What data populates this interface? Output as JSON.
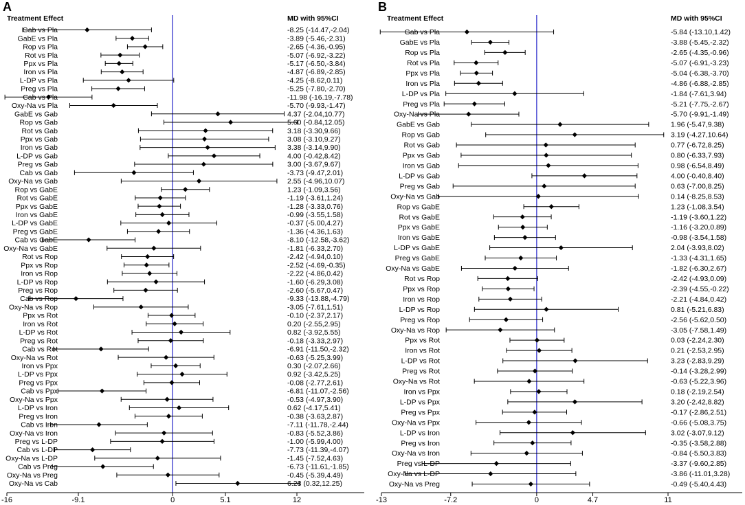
{
  "chart_data": [
    {
      "type": "forest",
      "panel_label": "A",
      "left_header": "Treatment Effect",
      "right_header": "MD with 95%CI",
      "xlim": [
        -16,
        12
      ],
      "xticks": [
        -16,
        -9.1,
        0,
        5.1,
        12
      ],
      "xtick_labels": [
        "-16",
        "-9.1",
        "0",
        "5.1",
        "12"
      ],
      "reference_line": 0,
      "rows": [
        {
          "label": "Gab vs Pla",
          "md": -8.25,
          "lo": -14.47,
          "hi": -2.04,
          "text": "-8.25 (-14.47,-2.04)"
        },
        {
          "label": "GabE vs Pla",
          "md": -3.89,
          "lo": -5.46,
          "hi": -2.31,
          "text": "-3.89 (-5.46,-2.31)"
        },
        {
          "label": "Rop vs Pla",
          "md": -2.65,
          "lo": -4.36,
          "hi": -0.95,
          "text": "-2.65 (-4.36,-0.95)"
        },
        {
          "label": "Rot vs Pla",
          "md": -5.07,
          "lo": -6.92,
          "hi": -3.22,
          "text": "-5.07 (-6.92,-3.22)"
        },
        {
          "label": "Ppx vs Pla",
          "md": -5.17,
          "lo": -6.5,
          "hi": -3.84,
          "text": "-5.17 (-6.50,-3.84)"
        },
        {
          "label": "Iron vs Pla",
          "md": -4.87,
          "lo": -6.89,
          "hi": -2.85,
          "text": "-4.87 (-6.89,-2.85)"
        },
        {
          "label": "L-DP vs Pla",
          "md": -4.25,
          "lo": -8.62,
          "hi": 0.11,
          "text": "-4.25 (-8.62,0.11)"
        },
        {
          "label": "Preg vs Pla",
          "md": -5.25,
          "lo": -7.8,
          "hi": -2.7,
          "text": "-5.25 (-7.80,-2.70)"
        },
        {
          "label": "Cab vs Pla",
          "md": -11.98,
          "lo": -16.19,
          "hi": -7.78,
          "text": "-11.98 (-16.19,-7.78)"
        },
        {
          "label": "Oxy-Na vs Pla",
          "md": -5.7,
          "lo": -9.93,
          "hi": -1.47,
          "text": "-5.70 (-9.93,-1.47)"
        },
        {
          "label": "GabE vs Gab",
          "md": 4.37,
          "lo": -2.04,
          "hi": 10.77,
          "text": "4.37 (-2.04,10.77)"
        },
        {
          "label": "Rop vs Gab",
          "md": 5.6,
          "lo": -0.84,
          "hi": 12.05,
          "text": "5.60 (-0.84,12.05)"
        },
        {
          "label": "Rot vs Gab",
          "md": 3.18,
          "lo": -3.3,
          "hi": 9.66,
          "text": "3.18 (-3.30,9.66)"
        },
        {
          "label": "Ppx vs Gab",
          "md": 3.08,
          "lo": -3.1,
          "hi": 9.27,
          "text": "3.08 (-3.10,9.27)"
        },
        {
          "label": "Iron vs Gab",
          "md": 3.38,
          "lo": -3.14,
          "hi": 9.9,
          "text": "3.38 (-3.14,9.90)"
        },
        {
          "label": "L-DP vs Gab",
          "md": 4.0,
          "lo": -0.42,
          "hi": 8.42,
          "text": "4.00 (-0.42,8.42)"
        },
        {
          "label": "Preg vs Gab",
          "md": 3.0,
          "lo": -3.67,
          "hi": 9.67,
          "text": "3.00 (-3.67,9.67)"
        },
        {
          "label": "Cab vs Gab",
          "md": -3.73,
          "lo": -9.47,
          "hi": 2.01,
          "text": "-3.73 (-9.47,2.01)"
        },
        {
          "label": "Oxy-Na vs Gab",
          "md": 2.55,
          "lo": -4.96,
          "hi": 10.07,
          "text": "2.55 (-4.96,10.07)"
        },
        {
          "label": "Rop vs GabE",
          "md": 1.23,
          "lo": -1.09,
          "hi": 3.56,
          "text": "1.23 (-1.09,3.56)"
        },
        {
          "label": "Rot vs GabE",
          "md": -1.19,
          "lo": -3.61,
          "hi": 1.24,
          "text": "-1.19 (-3.61,1.24)"
        },
        {
          "label": "Ppx vs GabE",
          "md": -1.28,
          "lo": -3.33,
          "hi": 0.76,
          "text": "-1.28 (-3.33,0.76)"
        },
        {
          "label": "Iron vs GabE",
          "md": -0.99,
          "lo": -3.55,
          "hi": 1.58,
          "text": "-0.99 (-3.55,1.58)"
        },
        {
          "label": "L-DP vs GabE",
          "md": -0.37,
          "lo": -5.0,
          "hi": 4.27,
          "text": "-0.37 (-5.00,4.27)"
        },
        {
          "label": "Preg vs GabE",
          "md": -1.36,
          "lo": -4.36,
          "hi": 1.63,
          "text": "-1.36 (-4.36,1.63)"
        },
        {
          "label": "Cab vs GabE",
          "md": -8.1,
          "lo": -12.58,
          "hi": -3.62,
          "text": "-8.10 (-12.58,-3.62)"
        },
        {
          "label": "Oxy-Na vs GabE",
          "md": -1.81,
          "lo": -6.33,
          "hi": 2.7,
          "text": "-1.81 (-6.33,2.70)"
        },
        {
          "label": "Rot vs Rop",
          "md": -2.42,
          "lo": -4.94,
          "hi": 0.1,
          "text": "-2.42 (-4.94,0.10)"
        },
        {
          "label": "Ppx vs Rop",
          "md": -2.52,
          "lo": -4.69,
          "hi": -0.35,
          "text": "-2.52 (-4.69,-0.35)"
        },
        {
          "label": "Iron vs Rop",
          "md": -2.22,
          "lo": -4.86,
          "hi": 0.42,
          "text": "-2.22 (-4.86,0.42)"
        },
        {
          "label": "L-DP vs Rop",
          "md": -1.6,
          "lo": -6.29,
          "hi": 3.08,
          "text": "-1.60 (-6.29,3.08)"
        },
        {
          "label": "Preg vs Rop",
          "md": -2.6,
          "lo": -5.67,
          "hi": 0.47,
          "text": "-2.60 (-5.67,0.47)"
        },
        {
          "label": "Cab vs Rop",
          "md": -9.33,
          "lo": -13.88,
          "hi": -4.79,
          "text": "-9.33 (-13.88,-4.79)"
        },
        {
          "label": "Oxy-Na vs Rop",
          "md": -3.05,
          "lo": -7.61,
          "hi": 1.51,
          "text": "-3.05 (-7.61,1.51)"
        },
        {
          "label": "Ppx vs Rot",
          "md": -0.1,
          "lo": -2.37,
          "hi": 2.17,
          "text": "-0.10 (-2.37,2.17)"
        },
        {
          "label": "Iron vs Rot",
          "md": 0.2,
          "lo": -2.55,
          "hi": 2.95,
          "text": "0.20 (-2.55,2.95)"
        },
        {
          "label": "L-DP vs Rot",
          "md": 0.82,
          "lo": -3.92,
          "hi": 5.55,
          "text": "0.82 (-3.92,5.55)"
        },
        {
          "label": "Preg vs Rot",
          "md": -0.18,
          "lo": -3.33,
          "hi": 2.97,
          "text": "-0.18 (-3.33,2.97)"
        },
        {
          "label": "Cab vs Rot",
          "md": -6.91,
          "lo": -11.5,
          "hi": -2.32,
          "text": "-6.91 (-11.50,-2.32)"
        },
        {
          "label": "Oxy-Na vs Rot",
          "md": -0.63,
          "lo": -5.25,
          "hi": 3.99,
          "text": "-0.63 (-5.25,3.99)"
        },
        {
          "label": "Iron vs Ppx",
          "md": 0.3,
          "lo": -2.07,
          "hi": 2.66,
          "text": "0.30 (-2.07,2.66)"
        },
        {
          "label": "L-DP vs Ppx",
          "md": 0.92,
          "lo": -3.42,
          "hi": 5.25,
          "text": "0.92 (-3.42,5.25)"
        },
        {
          "label": "Preg vs Ppx",
          "md": -0.08,
          "lo": -2.77,
          "hi": 2.61,
          "text": "-0.08 (-2.77,2.61)"
        },
        {
          "label": "Cab vs Ppx",
          "md": -6.81,
          "lo": -11.07,
          "hi": -2.56,
          "text": "-6.81 (-11.07,-2.56)"
        },
        {
          "label": "Oxy-Na vs Ppx",
          "md": -0.53,
          "lo": -4.97,
          "hi": 3.9,
          "text": "-0.53 (-4.97,3.90)"
        },
        {
          "label": "L-DP vs Iron",
          "md": 0.62,
          "lo": -4.17,
          "hi": 5.41,
          "text": "0.62 (-4.17,5.41)"
        },
        {
          "label": "Preg vs Iron",
          "md": -0.38,
          "lo": -3.63,
          "hi": 2.87,
          "text": "-0.38 (-3.63,2.87)"
        },
        {
          "label": "Cab vs Iron",
          "md": -7.11,
          "lo": -11.78,
          "hi": -2.44,
          "text": "-7.11 (-11.78,-2.44)"
        },
        {
          "label": "Oxy-Na vs Iron",
          "md": -0.83,
          "lo": -5.52,
          "hi": 3.86,
          "text": "-0.83 (-5.52,3.86)"
        },
        {
          "label": "Preg vs L-DP",
          "md": -1.0,
          "lo": -5.99,
          "hi": 4.0,
          "text": "-1.00 (-5.99,4.00)"
        },
        {
          "label": "Cab vs L-DP",
          "md": -7.73,
          "lo": -11.39,
          "hi": -4.07,
          "text": "-7.73 (-11.39,-4.07)"
        },
        {
          "label": "Oxy-Na vs L-DP",
          "md": -1.45,
          "lo": -7.52,
          "hi": 4.63,
          "text": "-1.45 (-7.52,4.63)"
        },
        {
          "label": "Cab vs Preg",
          "md": -6.73,
          "lo": -11.61,
          "hi": -1.85,
          "text": "-6.73 (-11.61,-1.85)"
        },
        {
          "label": "Oxy-Na vs Preg",
          "md": -0.45,
          "lo": -5.39,
          "hi": 4.49,
          "text": "-0.45 (-5.39,4.49)"
        },
        {
          "label": "Oxy-Na vs Cab",
          "md": 6.28,
          "lo": 0.32,
          "hi": 12.25,
          "text": "6.28 (0.32,12.25)"
        }
      ]
    },
    {
      "type": "forest",
      "panel_label": "B",
      "left_header": "Treatment Effect",
      "right_header": "MD with 95%CI",
      "xlim": [
        -13,
        11
      ],
      "xticks": [
        -13,
        -7.2,
        0,
        4.7,
        11
      ],
      "xtick_labels": [
        "-13",
        "-7.2",
        "0",
        "4.7",
        "11"
      ],
      "reference_line": 0,
      "rows": [
        {
          "label": "Gab vs Pla",
          "md": -5.84,
          "lo": -13.1,
          "hi": 1.42,
          "text": "-5.84 (-13.10,1.42)"
        },
        {
          "label": "GabE vs Pla",
          "md": -3.88,
          "lo": -5.45,
          "hi": -2.32,
          "text": "-3.88 (-5.45,-2.32)"
        },
        {
          "label": "Rop vs Pla",
          "md": -2.65,
          "lo": -4.35,
          "hi": -0.96,
          "text": "-2.65 (-4.35,-0.96)"
        },
        {
          "label": "Rot vs Pla",
          "md": -5.07,
          "lo": -6.91,
          "hi": -3.23,
          "text": "-5.07 (-6.91,-3.23)"
        },
        {
          "label": "Ppx vs Pla",
          "md": -5.04,
          "lo": -6.38,
          "hi": -3.7,
          "text": "-5.04 (-6.38,-3.70)"
        },
        {
          "label": "Iron vs Pla",
          "md": -4.86,
          "lo": -6.88,
          "hi": -2.85,
          "text": "-4.86 (-6.88,-2.85)"
        },
        {
          "label": "L-DP vs Pla",
          "md": -1.84,
          "lo": -7.61,
          "hi": 3.94,
          "text": "-1.84 (-7.61,3.94)"
        },
        {
          "label": "Preg vs Pla",
          "md": -5.21,
          "lo": -7.75,
          "hi": -2.67,
          "text": "-5.21 (-7.75,-2.67)"
        },
        {
          "label": "Oxy-Na vs Pla",
          "md": -5.7,
          "lo": -9.91,
          "hi": -1.49,
          "text": "-5.70 (-9.91,-1.49)"
        },
        {
          "label": "GabE vs Gab",
          "md": 1.96,
          "lo": -5.47,
          "hi": 9.38,
          "text": "1.96 (-5.47,9.38)"
        },
        {
          "label": "Rop vs Gab",
          "md": 3.19,
          "lo": -4.27,
          "hi": 10.64,
          "text": "3.19 (-4.27,10.64)"
        },
        {
          "label": "Rot vs Gab",
          "md": 0.77,
          "lo": -6.72,
          "hi": 8.25,
          "text": "0.77 (-6.72,8.25)"
        },
        {
          "label": "Ppx vs Gab",
          "md": 0.8,
          "lo": -6.33,
          "hi": 7.93,
          "text": "0.80 (-6.33,7.93)"
        },
        {
          "label": "Iron vs Gab",
          "md": 0.98,
          "lo": -6.54,
          "hi": 8.49,
          "text": "0.98 (-6.54,8.49)"
        },
        {
          "label": "L-DP vs Gab",
          "md": 4.0,
          "lo": -0.4,
          "hi": 8.4,
          "text": "4.00 (-0.40,8.40)"
        },
        {
          "label": "Preg vs Gab",
          "md": 0.63,
          "lo": -7.0,
          "hi": 8.25,
          "text": "0.63 (-7.00,8.25)"
        },
        {
          "label": "Oxy-Na vs Gab",
          "md": 0.14,
          "lo": -8.25,
          "hi": 8.53,
          "text": "0.14 (-8.25,8.53)"
        },
        {
          "label": "Rop vs GabE",
          "md": 1.23,
          "lo": -1.08,
          "hi": 3.54,
          "text": "1.23 (-1.08,3.54)"
        },
        {
          "label": "Rot vs GabE",
          "md": -1.19,
          "lo": -3.6,
          "hi": 1.22,
          "text": "-1.19 (-3.60,1.22)"
        },
        {
          "label": "Ppx vs GabE",
          "md": -1.16,
          "lo": -3.2,
          "hi": 0.89,
          "text": "-1.16 (-3.20,0.89)"
        },
        {
          "label": "Iron vs GabE",
          "md": -0.98,
          "lo": -3.54,
          "hi": 1.58,
          "text": "-0.98 (-3.54,1.58)"
        },
        {
          "label": "L-DP vs GabE",
          "md": 2.04,
          "lo": -3.93,
          "hi": 8.02,
          "text": "2.04 (-3.93,8.02)"
        },
        {
          "label": "Preg vs GabE",
          "md": -1.33,
          "lo": -4.31,
          "hi": 1.65,
          "text": "-1.33 (-4.31,1.65)"
        },
        {
          "label": "Oxy-Na vs GabE",
          "md": -1.82,
          "lo": -6.3,
          "hi": 2.67,
          "text": "-1.82 (-6.30,2.67)"
        },
        {
          "label": "Rot vs Rop",
          "md": -2.42,
          "lo": -4.93,
          "hi": 0.09,
          "text": "-2.42 (-4.93,0.09)"
        },
        {
          "label": "Ppx vs Rop",
          "md": -2.39,
          "lo": -4.55,
          "hi": -0.22,
          "text": "-2.39 (-4.55,-0.22)"
        },
        {
          "label": "Iron vs Rop",
          "md": -2.21,
          "lo": -4.84,
          "hi": 0.42,
          "text": "-2.21 (-4.84,0.42)"
        },
        {
          "label": "L-DP vs Rop",
          "md": 0.81,
          "lo": -5.21,
          "hi": 6.83,
          "text": "0.81 (-5.21,6.83)"
        },
        {
          "label": "Preg vs Rop",
          "md": -2.56,
          "lo": -5.62,
          "hi": 0.5,
          "text": "-2.56 (-5.62,0.50)"
        },
        {
          "label": "Oxy-Na vs Rop",
          "md": -3.05,
          "lo": -7.58,
          "hi": 1.49,
          "text": "-3.05 (-7.58,1.49)"
        },
        {
          "label": "Ppx vs Rot",
          "md": 0.03,
          "lo": -2.24,
          "hi": 2.3,
          "text": "0.03 (-2.24,2.30)"
        },
        {
          "label": "Iron vs Rot",
          "md": 0.21,
          "lo": -2.53,
          "hi": 2.95,
          "text": "0.21 (-2.53,2.95)"
        },
        {
          "label": "L-DP vs Rot",
          "md": 3.23,
          "lo": -2.83,
          "hi": 9.29,
          "text": "3.23 (-2.83,9.29)"
        },
        {
          "label": "Preg vs Rot",
          "md": -0.14,
          "lo": -3.28,
          "hi": 2.99,
          "text": "-0.14 (-3.28,2.99)"
        },
        {
          "label": "Oxy-Na vs Rot",
          "md": -0.63,
          "lo": -5.22,
          "hi": 3.96,
          "text": "-0.63 (-5.22,3.96)"
        },
        {
          "label": "Iron vs Ppx",
          "md": 0.18,
          "lo": -2.19,
          "hi": 2.54,
          "text": "0.18 (-2.19,2.54)"
        },
        {
          "label": "L-DP vs Ppx",
          "md": 3.2,
          "lo": -2.42,
          "hi": 8.82,
          "text": "3.20 (-2.42,8.82)"
        },
        {
          "label": "Preg vs Ppx",
          "md": -0.17,
          "lo": -2.86,
          "hi": 2.51,
          "text": "-0.17 (-2.86,2.51)"
        },
        {
          "label": "Oxy-Na vs Ppx",
          "md": -0.66,
          "lo": -5.08,
          "hi": 3.75,
          "text": "-0.66 (-5.08,3.75)"
        },
        {
          "label": "L-DP vs Iron",
          "md": 3.02,
          "lo": -3.07,
          "hi": 9.12,
          "text": "3.02 (-3.07,9.12)"
        },
        {
          "label": "Preg vs Iron",
          "md": -0.35,
          "lo": -3.58,
          "hi": 2.88,
          "text": "-0.35 (-3.58,2.88)"
        },
        {
          "label": "Oxy-Na vs Iron",
          "md": -0.84,
          "lo": -5.5,
          "hi": 3.83,
          "text": "-0.84 (-5.50,3.83)"
        },
        {
          "label": "Preg vs L-DP",
          "md": -3.37,
          "lo": -9.6,
          "hi": 2.85,
          "text": "-3.37 (-9.60,2.85)"
        },
        {
          "label": "Oxy-Na vs L-DP",
          "md": -3.86,
          "lo": -11.01,
          "hi": 3.28,
          "text": "-3.86 (-11.01,3.28)"
        },
        {
          "label": "Oxy-Na vs Preg",
          "md": -0.49,
          "lo": -5.4,
          "hi": 4.43,
          "text": "-0.49 (-5.40,4.43)"
        }
      ]
    }
  ]
}
